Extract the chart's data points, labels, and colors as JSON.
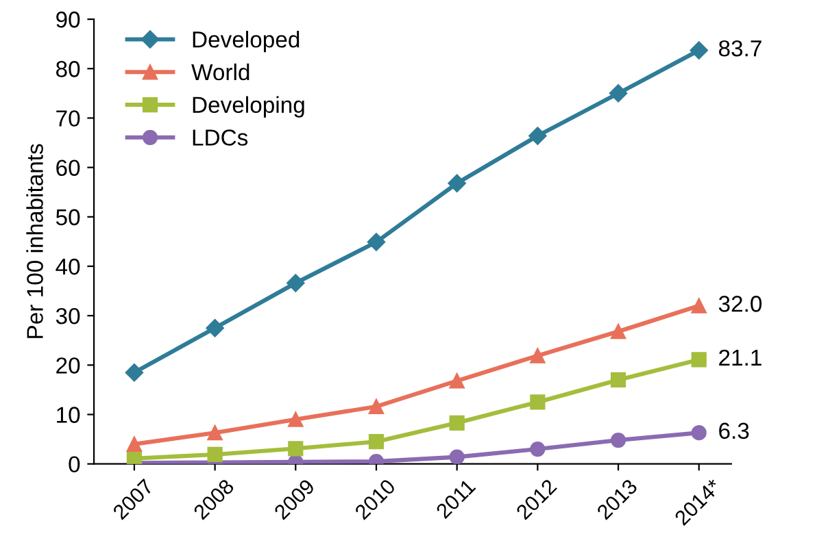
{
  "chart_data": {
    "type": "line",
    "ylabel": "Per 100 inhabitants",
    "categories": [
      "2007",
      "2008",
      "2009",
      "2010",
      "2011",
      "2012",
      "2013",
      "2014*"
    ],
    "ylim": [
      0,
      90
    ],
    "yticks": [
      0,
      10,
      20,
      30,
      40,
      50,
      60,
      70,
      80,
      90
    ],
    "grid": false,
    "legend": "top left",
    "series": [
      {
        "name": "Developed",
        "color": "#2f7c98",
        "marker": "diamond",
        "values": [
          18.5,
          27.5,
          36.6,
          44.9,
          56.8,
          66.4,
          75.0,
          83.7
        ],
        "value_labels": [
          null,
          null,
          null,
          null,
          null,
          null,
          null,
          "83.7"
        ]
      },
      {
        "name": "World",
        "color": "#e8705a",
        "marker": "triangle",
        "values": [
          4.0,
          6.3,
          9.0,
          11.6,
          16.8,
          21.9,
          26.8,
          32.0
        ],
        "value_labels": [
          null,
          null,
          null,
          null,
          null,
          null,
          null,
          "32.0"
        ]
      },
      {
        "name": "Developing",
        "color": "#a4bd3c",
        "marker": "square",
        "values": [
          1.1,
          1.9,
          3.1,
          4.5,
          8.3,
          12.5,
          17.0,
          21.1
        ],
        "value_labels": [
          null,
          null,
          null,
          null,
          null,
          null,
          null,
          "21.1"
        ]
      },
      {
        "name": "LDCs",
        "color": "#8a6bb2",
        "marker": "circle",
        "values": [
          0.2,
          0.3,
          0.4,
          0.5,
          1.4,
          3.0,
          4.8,
          6.3
        ],
        "value_labels": [
          null,
          null,
          null,
          null,
          null,
          null,
          null,
          "6.3"
        ]
      }
    ]
  }
}
